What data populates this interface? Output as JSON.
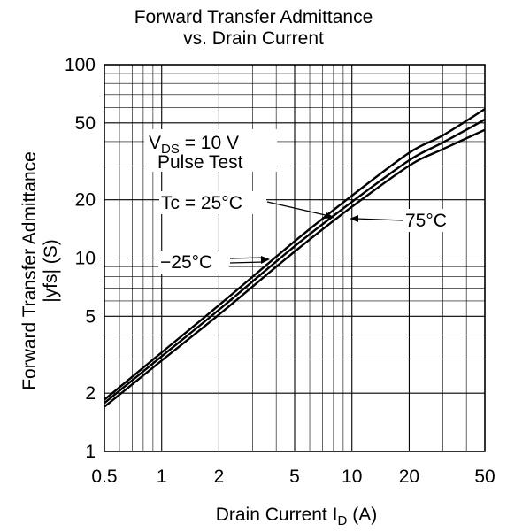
{
  "chart_data": {
    "type": "line",
    "title_lines": [
      "Forward Transfer Admittance",
      "vs. Drain Current"
    ],
    "xlabel": {
      "text": "Drain Current  I",
      "sub": "D",
      "unit": "(A)"
    },
    "ylabel_lines": [
      "Forward Transfer Admittance",
      "|yfs|  (S)"
    ],
    "x_scale": "log",
    "y_scale": "log",
    "xlim": [
      0.5,
      50
    ],
    "ylim": [
      1,
      100
    ],
    "x_ticks": [
      0.5,
      1,
      2,
      5,
      10,
      20,
      50
    ],
    "x_tick_labels": [
      "0.5",
      "1",
      "2",
      "5",
      "10",
      "20",
      "50"
    ],
    "y_ticks": [
      1,
      2,
      5,
      10,
      20,
      50,
      100
    ],
    "y_tick_labels": [
      "1",
      "2",
      "5",
      "10",
      "20",
      "50",
      "100"
    ],
    "grid": true,
    "conditions": {
      "vds": {
        "main": "V",
        "sub": "DS",
        "rest": " = 10 V"
      },
      "pulse": "Pulse Test"
    },
    "series": [
      {
        "name": "Tc = 25°C",
        "x": [
          0.5,
          1,
          2,
          5,
          10,
          20,
          30,
          50
        ],
        "y": [
          1.78,
          3.1,
          5.4,
          11.5,
          19.5,
          32,
          39.5,
          52
        ]
      },
      {
        "name": "75°C",
        "x": [
          0.5,
          1,
          2,
          5,
          10,
          20,
          30,
          50
        ],
        "y": [
          1.7,
          2.95,
          5.1,
          10.8,
          18.4,
          30,
          36.5,
          46
        ]
      },
      {
        "name": "−25°C",
        "x": [
          0.5,
          1,
          2,
          5,
          10,
          20,
          30,
          50
        ],
        "y": [
          1.85,
          3.25,
          5.7,
          12.2,
          21,
          35,
          43,
          59
        ]
      }
    ]
  }
}
